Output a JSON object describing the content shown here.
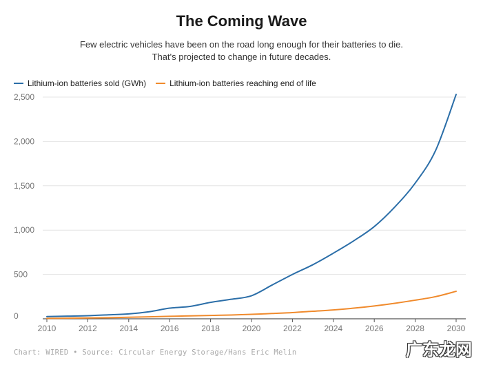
{
  "chart_data": {
    "type": "line",
    "title": "The Coming Wave",
    "subtitle_line1": "Few electric vehicles have been on the road long enough for their batteries to die.",
    "subtitle_line2": "That's projected to change in future decades.",
    "xlabel": "",
    "ylabel": "",
    "xlim": [
      2010,
      2030
    ],
    "ylim": [
      0,
      2500
    ],
    "x_ticks": [
      "2010",
      "2012",
      "2014",
      "2016",
      "2018",
      "2020",
      "2022",
      "2024",
      "2026",
      "2028",
      "2030"
    ],
    "y_ticks": [
      "0",
      "500",
      "1,000",
      "1,500",
      "2,000",
      "2,500"
    ],
    "y_tick_values": [
      0,
      500,
      1000,
      1500,
      2000,
      2500
    ],
    "grid": true,
    "legend_position": "top-left",
    "x": [
      2010,
      2011,
      2012,
      2013,
      2014,
      2015,
      2016,
      2017,
      2018,
      2019,
      2020,
      2021,
      2022,
      2023,
      2024,
      2025,
      2026,
      2027,
      2028,
      2029,
      2030
    ],
    "series": [
      {
        "name": "Lithium-ion batteries sold (GWh)",
        "color": "#2b6ea8",
        "values": [
          25,
          30,
          35,
          45,
          55,
          80,
          120,
          140,
          185,
          220,
          260,
          380,
          500,
          610,
          740,
          880,
          1040,
          1260,
          1530,
          1900,
          2530
        ]
      },
      {
        "name": "Lithium-ion batteries reaching end of life",
        "color": "#f08a2c",
        "values": [
          5,
          7,
          10,
          13,
          17,
          22,
          28,
          33,
          38,
          43,
          50,
          60,
          70,
          85,
          100,
          120,
          145,
          175,
          210,
          250,
          310
        ]
      }
    ]
  },
  "source": "Chart: WIRED • Source: Circular Energy Storage/Hans Eric Melin",
  "watermark": "广东龙网"
}
